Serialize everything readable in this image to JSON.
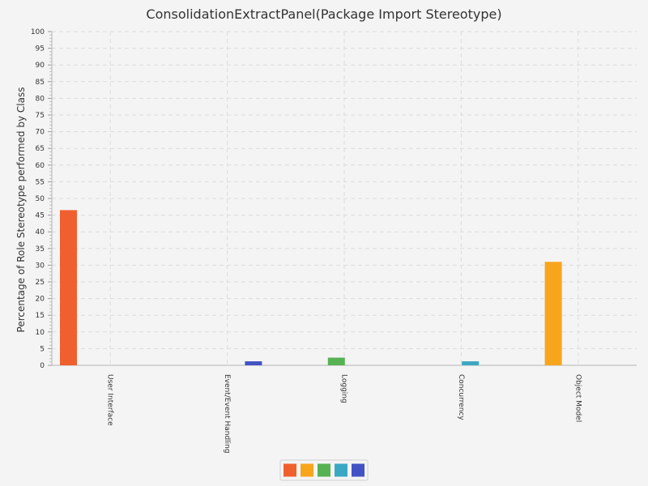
{
  "chart_data": {
    "type": "bar",
    "title": "ConsolidationExtractPanel(Package Import Stereotype)",
    "xlabel": "",
    "ylabel": "Percentage of Role Stereotype performed by Class",
    "ylim": [
      0,
      100
    ],
    "yticks": [
      0,
      5,
      10,
      15,
      20,
      25,
      30,
      35,
      40,
      45,
      50,
      55,
      60,
      65,
      70,
      75,
      80,
      85,
      90,
      95,
      100
    ],
    "categories": [
      "User Interface",
      "Event/Event Handling",
      "Logging",
      "Concurrency",
      "Object Model"
    ],
    "series": [
      {
        "color": "#f0602e",
        "values": [
          46.5,
          0,
          0,
          0,
          0
        ]
      },
      {
        "color": "#f8a51e",
        "values": [
          0,
          0,
          0,
          0,
          31
        ]
      },
      {
        "color": "#56b253",
        "values": [
          0,
          0,
          2.3,
          0,
          0
        ]
      },
      {
        "color": "#3ba8c3",
        "values": [
          0,
          0,
          0,
          1.2,
          0
        ]
      },
      {
        "color": "#4252c4",
        "values": [
          0,
          1.2,
          0,
          0,
          0
        ]
      }
    ],
    "grid": true,
    "legend_position": "bottom"
  }
}
